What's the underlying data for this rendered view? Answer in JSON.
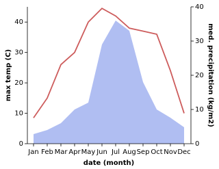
{
  "chart_data": {
    "type": "line-area",
    "x_label": "date (month)",
    "y_label": "max temp (C)",
    "y2_label": "med. precipitation (kg/m2)",
    "categories": [
      "Jan",
      "Feb",
      "Mar",
      "Apr",
      "May",
      "Jun",
      "Jul",
      "Aug",
      "Sep",
      "Oct",
      "Nov",
      "Dec"
    ],
    "ylim": [
      0,
      45
    ],
    "yticks": [
      0,
      10,
      20,
      30,
      40
    ],
    "y2lim": [
      0,
      40
    ],
    "y2ticks": [
      0,
      10,
      20,
      30,
      40
    ],
    "series": [
      {
        "name": "max temp",
        "color": "#cd5c5c",
        "values": [
          8.5,
          15,
          26,
          30,
          40,
          44.5,
          42,
          38,
          37,
          36,
          24,
          10
        ]
      },
      {
        "name": "med. precipitation",
        "color": "#b0bef2",
        "axis": "y2",
        "values": [
          2.8,
          4,
          6,
          10,
          12,
          29,
          36,
          33,
          18,
          10,
          7.6,
          4.8
        ]
      }
    ]
  }
}
